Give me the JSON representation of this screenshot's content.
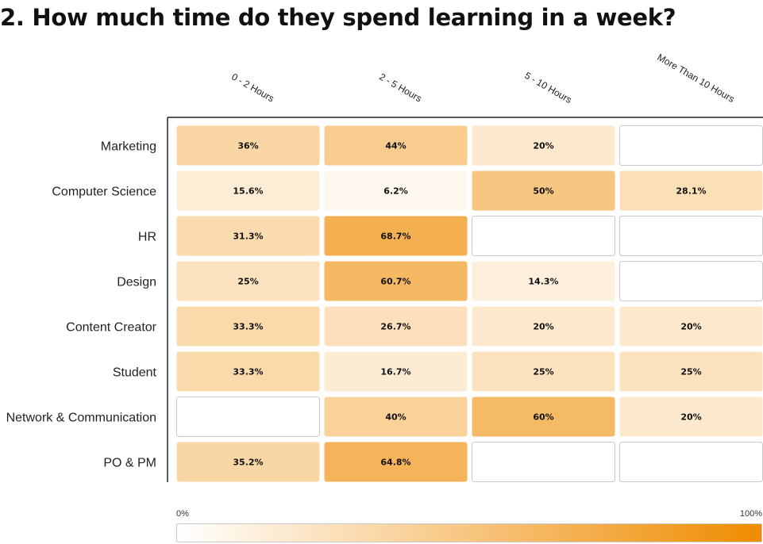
{
  "chart_data": {
    "type": "heatmap",
    "title": "2.  How much time do they spend learning in a week?",
    "columns": [
      "0 - 2 Hours",
      "2 - 5 Hours",
      "5 - 10 Hours",
      "More Than 10 Hours"
    ],
    "rows": [
      "Marketing",
      "Computer Science",
      "HR",
      "Design",
      "Content Creator",
      "Student",
      "Network & Communication",
      "PO & PM"
    ],
    "values": [
      [
        36,
        44,
        20,
        null
      ],
      [
        15.6,
        6.2,
        50,
        28.1
      ],
      [
        31.3,
        68.7,
        null,
        null
      ],
      [
        25,
        60.7,
        14.3,
        null
      ],
      [
        33.3,
        26.7,
        20,
        20
      ],
      [
        33.3,
        16.7,
        25,
        25
      ],
      [
        null,
        40,
        60,
        20
      ],
      [
        35.2,
        64.8,
        null,
        null
      ]
    ],
    "value_labels": [
      [
        "36%",
        "44%",
        "20%",
        ""
      ],
      [
        "15.6%",
        "6.2%",
        "50%",
        "28.1%"
      ],
      [
        "31.3%",
        "68.7%",
        "",
        ""
      ],
      [
        "25%",
        "60.7%",
        "14.3%",
        ""
      ],
      [
        "33.3%",
        "26.7%",
        "20%",
        "20%"
      ],
      [
        "33.3%",
        "16.7%",
        "25%",
        "25%"
      ],
      [
        "",
        "40%",
        "60%",
        "20%"
      ],
      [
        "35.2%",
        "64.8%",
        "",
        ""
      ]
    ],
    "scale": {
      "min": 0,
      "max": 100,
      "min_label": "0%",
      "max_label": "100%"
    },
    "colors": {
      "low": "#ffffff",
      "high": "#ef8c00",
      "empty_border": "#c9c9c9",
      "axis": "#222222"
    },
    "legend_placement": "bottom"
  }
}
